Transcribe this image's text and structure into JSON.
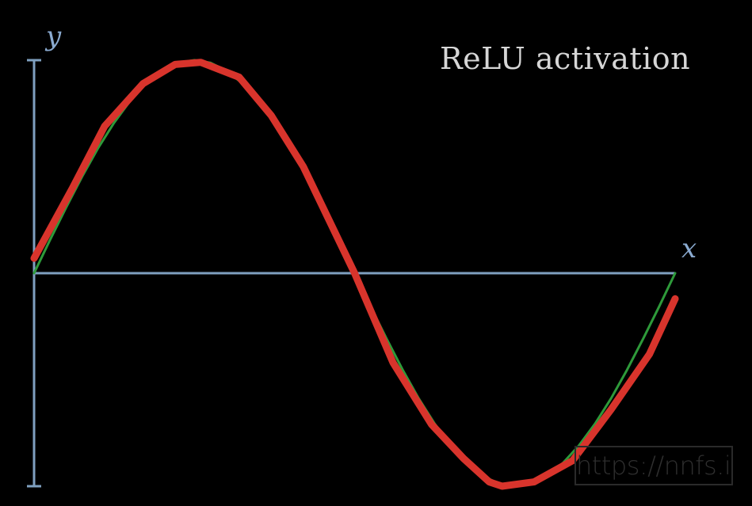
{
  "chart_data": {
    "type": "line",
    "title": "ReLU activation",
    "xlabel": "x",
    "ylabel": "y",
    "xlim": [
      0,
      1
    ],
    "ylim": [
      -1,
      1
    ],
    "grid": false,
    "legend": "none",
    "series": [
      {
        "color": "#2e9a3a",
        "values": [
          [
            0.0,
            0.0
          ],
          [
            0.025,
            0.157
          ],
          [
            0.05,
            0.309
          ],
          [
            0.075,
            0.454
          ],
          [
            0.1,
            0.588
          ],
          [
            0.125,
            0.707
          ],
          [
            0.15,
            0.809
          ],
          [
            0.175,
            0.891
          ],
          [
            0.2,
            0.951
          ],
          [
            0.225,
            0.988
          ],
          [
            0.25,
            1.0
          ],
          [
            0.275,
            0.988
          ],
          [
            0.3,
            0.951
          ],
          [
            0.325,
            0.891
          ],
          [
            0.35,
            0.809
          ],
          [
            0.375,
            0.707
          ],
          [
            0.4,
            0.588
          ],
          [
            0.425,
            0.454
          ],
          [
            0.45,
            0.309
          ],
          [
            0.475,
            0.157
          ],
          [
            0.5,
            0.0
          ],
          [
            0.525,
            -0.157
          ],
          [
            0.55,
            -0.309
          ],
          [
            0.575,
            -0.454
          ],
          [
            0.6,
            -0.588
          ],
          [
            0.625,
            -0.707
          ],
          [
            0.65,
            -0.809
          ],
          [
            0.675,
            -0.891
          ],
          [
            0.7,
            -0.951
          ],
          [
            0.725,
            -0.988
          ],
          [
            0.75,
            -1.0
          ],
          [
            0.775,
            -0.988
          ],
          [
            0.8,
            -0.951
          ],
          [
            0.825,
            -0.891
          ],
          [
            0.85,
            -0.809
          ],
          [
            0.875,
            -0.707
          ],
          [
            0.9,
            -0.588
          ],
          [
            0.925,
            -0.454
          ],
          [
            0.95,
            -0.309
          ],
          [
            0.975,
            -0.157
          ],
          [
            1.0,
            0.0
          ]
        ]
      },
      {
        "color": "#d8342c",
        "values": [
          [
            0.0,
            0.07
          ],
          [
            0.06,
            0.4
          ],
          [
            0.11,
            0.69
          ],
          [
            0.17,
            0.89
          ],
          [
            0.22,
            0.98
          ],
          [
            0.26,
            0.99
          ],
          [
            0.32,
            0.92
          ],
          [
            0.37,
            0.74
          ],
          [
            0.42,
            0.5
          ],
          [
            0.5,
            0.0
          ],
          [
            0.56,
            -0.42
          ],
          [
            0.62,
            -0.71
          ],
          [
            0.67,
            -0.87
          ],
          [
            0.71,
            -0.98
          ],
          [
            0.73,
            -1.0
          ],
          [
            0.78,
            -0.98
          ],
          [
            0.84,
            -0.88
          ],
          [
            0.9,
            -0.64
          ],
          [
            0.96,
            -0.38
          ],
          [
            1.0,
            -0.12
          ]
        ]
      }
    ],
    "axis_color": "#7fa0c0"
  },
  "watermark": "https://nnfs.io"
}
